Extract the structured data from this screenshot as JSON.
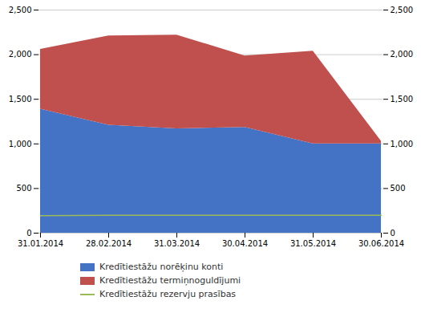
{
  "chart_data": {
    "type": "area",
    "categories": [
      "31.01.2014",
      "28.02.2014",
      "31.03.2014",
      "30.04.2014",
      "31.05.2014",
      "30.06.2014"
    ],
    "series": [
      {
        "name": "Kredītiestāžu norēķinu konti",
        "color": "#4472C4",
        "type": "area",
        "values": [
          1390,
          1210,
          1170,
          1185,
          1000,
          1000
        ]
      },
      {
        "name": "Kredītiestāžu termiņnoguldījumi",
        "color": "#C0504D",
        "type": "area",
        "values": [
          670,
          1000,
          1050,
          800,
          1040,
          30
        ]
      },
      {
        "name": "Kredītiestāžu rezervju prasības",
        "color": "#9BBB59",
        "type": "line",
        "values": [
          195,
          200,
          200,
          200,
          200,
          200
        ]
      }
    ],
    "stacked": true,
    "ylim": [
      0,
      2500
    ],
    "yticks": [
      0,
      500,
      {
        "value": 1000,
        "label": "1,000"
      },
      {
        "value": 1500,
        "label": "1,500"
      },
      {
        "value": 2000,
        "label": "2,000"
      },
      {
        "value": 2500,
        "label": "2,500"
      }
    ],
    "y2lim": [
      0,
      2500
    ],
    "y2ticks": [
      0,
      500,
      {
        "value": 1000,
        "label": "1,000"
      },
      {
        "value": 1500,
        "label": "1,500"
      },
      {
        "value": 2000,
        "label": "2,000"
      },
      {
        "value": 2500,
        "label": "2,500"
      }
    ],
    "grid": true,
    "legend": "bottom"
  }
}
